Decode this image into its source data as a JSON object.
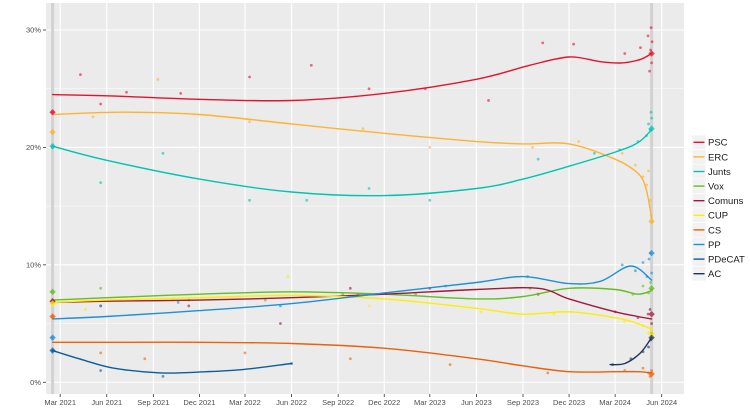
{
  "chart_data": {
    "type": "line",
    "title": "",
    "xlabel": "",
    "ylabel": "",
    "ylim": [
      -1,
      32.3
    ],
    "y_ticks": [
      {
        "value": 0,
        "label": "0%"
      },
      {
        "value": 10,
        "label": "10%"
      },
      {
        "value": 20,
        "label": "20%"
      },
      {
        "value": 30,
        "label": "30%"
      }
    ],
    "x_range": [
      "2021-02-01",
      "2024-07-15"
    ],
    "x_ticks": [
      {
        "date": "2021-03-01",
        "label": "Mar 2021"
      },
      {
        "date": "2021-06-01",
        "label": "Jun 2021"
      },
      {
        "date": "2021-09-01",
        "label": "Sep 2021"
      },
      {
        "date": "2021-12-01",
        "label": "Dec 2021"
      },
      {
        "date": "2022-03-01",
        "label": "Mar 2022"
      },
      {
        "date": "2022-06-01",
        "label": "Jun 2022"
      },
      {
        "date": "2022-09-01",
        "label": "Sep 2022"
      },
      {
        "date": "2022-12-01",
        "label": "Dec 2022"
      },
      {
        "date": "2023-03-01",
        "label": "Mar 2023"
      },
      {
        "date": "2023-06-01",
        "label": "Jun 2023"
      },
      {
        "date": "2023-09-01",
        "label": "Sep 2023"
      },
      {
        "date": "2023-12-01",
        "label": "Dec 2023"
      },
      {
        "date": "2024-03-01",
        "label": "Mar 2024"
      },
      {
        "date": "2024-06-01",
        "label": "Jun 2024"
      }
    ],
    "event_lines": [
      "2021-02-14",
      "2024-05-12"
    ],
    "grid": true,
    "legend_position": "right",
    "series": [
      {
        "name": "PSC",
        "color": "#e8112d",
        "trend": [
          [
            "2021-02-14",
            24.5
          ],
          [
            "2021-06-01",
            24.4
          ],
          [
            "2021-12-01",
            24.1
          ],
          [
            "2022-06-01",
            24.0
          ],
          [
            "2022-12-01",
            24.6
          ],
          [
            "2023-06-01",
            25.8
          ],
          [
            "2023-09-15",
            27.0
          ],
          [
            "2023-12-01",
            27.7
          ],
          [
            "2024-02-01",
            27.3
          ],
          [
            "2024-03-15",
            27.2
          ],
          [
            "2024-04-20",
            27.5
          ],
          [
            "2024-05-12",
            28.0
          ]
        ],
        "polls": [
          [
            "2021-02-14",
            23.0
          ],
          [
            "2021-04-10",
            26.2
          ],
          [
            "2021-05-20",
            23.7
          ],
          [
            "2021-07-10",
            24.7
          ],
          [
            "2021-10-25",
            24.6
          ],
          [
            "2022-03-10",
            26.0
          ],
          [
            "2022-07-10",
            27.0
          ],
          [
            "2022-11-01",
            25.0
          ],
          [
            "2023-02-20",
            25.0
          ],
          [
            "2023-06-25",
            24.0
          ],
          [
            "2023-10-10",
            28.9
          ],
          [
            "2023-12-10",
            28.8
          ],
          [
            "2024-03-20",
            28.0
          ],
          [
            "2024-04-20",
            28.5
          ],
          [
            "2024-05-05",
            29.5
          ],
          [
            "2024-05-08",
            26.5
          ],
          [
            "2024-05-10",
            28.3
          ],
          [
            "2024-05-11",
            30.2
          ],
          [
            "2024-05-12",
            27.2
          ],
          [
            "2024-05-13",
            29.0
          ]
        ]
      },
      {
        "name": "ERC",
        "color": "#ffb232",
        "trend": [
          [
            "2021-02-14",
            22.8
          ],
          [
            "2021-07-01",
            23.0
          ],
          [
            "2021-12-01",
            22.8
          ],
          [
            "2022-06-01",
            22.0
          ],
          [
            "2022-12-01",
            21.2
          ],
          [
            "2023-06-01",
            20.5
          ],
          [
            "2023-09-01",
            20.3
          ],
          [
            "2023-12-01",
            20.3
          ],
          [
            "2024-03-01",
            19.0
          ],
          [
            "2024-04-15",
            17.8
          ],
          [
            "2024-05-01",
            16.5
          ],
          [
            "2024-05-12",
            14.0
          ]
        ],
        "polls": [
          [
            "2021-02-14",
            21.4
          ],
          [
            "2021-05-05",
            22.6
          ],
          [
            "2021-09-10",
            25.8
          ],
          [
            "2022-03-10",
            22.2
          ],
          [
            "2022-10-20",
            21.6
          ],
          [
            "2023-03-01",
            20.0
          ],
          [
            "2023-09-20",
            20.0
          ],
          [
            "2023-12-20",
            20.5
          ],
          [
            "2024-03-15",
            19.5
          ],
          [
            "2024-04-10",
            18.5
          ],
          [
            "2024-04-25",
            17.5
          ],
          [
            "2024-05-02",
            16.8
          ],
          [
            "2024-05-06",
            18.0
          ],
          [
            "2024-05-09",
            15.5
          ],
          [
            "2024-05-11",
            14.2
          ],
          [
            "2024-05-12",
            13.7
          ]
        ]
      },
      {
        "name": "Junts",
        "color": "#00c3b2",
        "trend": [
          [
            "2021-02-14",
            20.1
          ],
          [
            "2021-06-01",
            18.9
          ],
          [
            "2021-12-01",
            17.3
          ],
          [
            "2022-06-01",
            16.2
          ],
          [
            "2022-12-01",
            15.9
          ],
          [
            "2023-06-01",
            16.5
          ],
          [
            "2023-09-01",
            17.3
          ],
          [
            "2023-12-01",
            18.4
          ],
          [
            "2024-03-01",
            19.6
          ],
          [
            "2024-04-15",
            20.4
          ],
          [
            "2024-05-12",
            21.5
          ]
        ],
        "polls": [
          [
            "2021-02-14",
            20.0
          ],
          [
            "2021-05-20",
            17.0
          ],
          [
            "2021-09-20",
            19.5
          ],
          [
            "2022-03-10",
            15.5
          ],
          [
            "2022-07-01",
            15.5
          ],
          [
            "2022-11-01",
            16.5
          ],
          [
            "2023-03-01",
            15.5
          ],
          [
            "2023-10-01",
            19.0
          ],
          [
            "2024-01-20",
            19.5
          ],
          [
            "2024-03-10",
            19.8
          ],
          [
            "2024-04-15",
            20.5
          ],
          [
            "2024-05-02",
            21.0
          ],
          [
            "2024-05-06",
            22.0
          ],
          [
            "2024-05-09",
            21.5
          ],
          [
            "2024-05-11",
            23.0
          ],
          [
            "2024-05-12",
            22.5
          ]
        ]
      },
      {
        "name": "Vox",
        "color": "#63be21",
        "trend": [
          [
            "2021-02-14",
            7.0
          ],
          [
            "2021-06-01",
            7.2
          ],
          [
            "2021-12-01",
            7.5
          ],
          [
            "2022-06-01",
            7.7
          ],
          [
            "2022-12-01",
            7.5
          ],
          [
            "2023-06-01",
            7.1
          ],
          [
            "2023-09-01",
            7.3
          ],
          [
            "2023-12-01",
            8.0
          ],
          [
            "2024-03-01",
            7.9
          ],
          [
            "2024-04-15",
            7.5
          ],
          [
            "2024-05-12",
            7.8
          ]
        ],
        "polls": [
          [
            "2021-02-14",
            7.7
          ],
          [
            "2021-05-20",
            8.0
          ],
          [
            "2021-11-10",
            7.0
          ],
          [
            "2022-04-10",
            7.0
          ],
          [
            "2022-09-10",
            7.5
          ],
          [
            "2023-02-01",
            7.5
          ],
          [
            "2023-09-15",
            8.0
          ],
          [
            "2024-04-05",
            7.5
          ],
          [
            "2024-04-25",
            8.2
          ],
          [
            "2024-05-06",
            7.6
          ],
          [
            "2024-05-10",
            8.5
          ],
          [
            "2024-05-12",
            7.9
          ]
        ]
      },
      {
        "name": "Comuns",
        "color": "#a1183a",
        "trend": [
          [
            "2021-02-14",
            6.8
          ],
          [
            "2021-06-01",
            6.9
          ],
          [
            "2021-12-01",
            7.0
          ],
          [
            "2022-06-01",
            7.2
          ],
          [
            "2022-12-01",
            7.5
          ],
          [
            "2023-06-01",
            7.9
          ],
          [
            "2023-10-01",
            8.0
          ],
          [
            "2023-12-01",
            7.1
          ],
          [
            "2024-03-01",
            6.0
          ],
          [
            "2024-04-15",
            5.6
          ],
          [
            "2024-05-12",
            5.4
          ]
        ],
        "polls": [
          [
            "2021-02-14",
            6.9
          ],
          [
            "2021-05-20",
            6.5
          ],
          [
            "2021-11-10",
            6.5
          ],
          [
            "2022-05-10",
            5.0
          ],
          [
            "2022-09-25",
            8.0
          ],
          [
            "2023-03-01",
            8.0
          ],
          [
            "2023-10-01",
            7.5
          ],
          [
            "2024-03-01",
            6.0
          ],
          [
            "2024-04-15",
            5.5
          ],
          [
            "2024-05-05",
            5.8
          ],
          [
            "2024-05-09",
            6.2
          ],
          [
            "2024-05-12",
            5.0
          ]
        ]
      },
      {
        "name": "CUP",
        "color": "#ffed00",
        "trend": [
          [
            "2021-02-14",
            6.8
          ],
          [
            "2021-06-01",
            7.0
          ],
          [
            "2021-12-01",
            7.2
          ],
          [
            "2022-06-01",
            7.4
          ],
          [
            "2022-12-01",
            7.1
          ],
          [
            "2023-06-01",
            6.3
          ],
          [
            "2023-09-01",
            5.8
          ],
          [
            "2023-12-01",
            6.0
          ],
          [
            "2024-03-01",
            5.5
          ],
          [
            "2024-04-15",
            5.0
          ],
          [
            "2024-05-12",
            4.5
          ]
        ],
        "polls": [
          [
            "2021-02-14",
            6.7
          ],
          [
            "2021-04-20",
            6.2
          ],
          [
            "2021-10-10",
            7.0
          ],
          [
            "2022-05-25",
            9.0
          ],
          [
            "2022-11-01",
            6.5
          ],
          [
            "2023-06-10",
            6.0
          ],
          [
            "2023-11-01",
            5.8
          ],
          [
            "2024-03-20",
            5.2
          ],
          [
            "2024-04-25",
            4.8
          ],
          [
            "2024-05-06",
            4.2
          ],
          [
            "2024-05-11",
            4.6
          ]
        ]
      },
      {
        "name": "CS",
        "color": "#eb6109",
        "trend": [
          [
            "2021-02-14",
            3.4
          ],
          [
            "2021-06-01",
            3.4
          ],
          [
            "2021-12-01",
            3.4
          ],
          [
            "2022-06-01",
            3.3
          ],
          [
            "2022-12-01",
            2.9
          ],
          [
            "2023-06-01",
            2.0
          ],
          [
            "2023-09-01",
            1.4
          ],
          [
            "2023-12-01",
            0.9
          ],
          [
            "2024-03-01",
            0.9
          ],
          [
            "2024-04-15",
            0.9
          ],
          [
            "2024-05-12",
            0.8
          ]
        ],
        "polls": [
          [
            "2021-02-14",
            5.6
          ],
          [
            "2021-05-20",
            2.5
          ],
          [
            "2021-08-15",
            2.0
          ],
          [
            "2022-03-01",
            2.5
          ],
          [
            "2022-09-25",
            2.0
          ],
          [
            "2023-04-10",
            1.5
          ],
          [
            "2023-10-20",
            0.8
          ],
          [
            "2024-03-20",
            1.0
          ],
          [
            "2024-04-25",
            1.2
          ],
          [
            "2024-05-06",
            0.8
          ],
          [
            "2024-05-09",
            0.5
          ],
          [
            "2024-05-12",
            1.0
          ]
        ]
      },
      {
        "name": "PP",
        "color": "#1e90d6",
        "trend": [
          [
            "2021-02-14",
            5.4
          ],
          [
            "2021-06-01",
            5.6
          ],
          [
            "2021-12-01",
            6.1
          ],
          [
            "2022-06-01",
            6.7
          ],
          [
            "2022-12-01",
            7.6
          ],
          [
            "2023-06-01",
            8.5
          ],
          [
            "2023-09-01",
            9.0
          ],
          [
            "2023-12-01",
            8.4
          ],
          [
            "2024-02-01",
            8.6
          ],
          [
            "2024-04-01",
            9.9
          ],
          [
            "2024-05-12",
            8.7
          ]
        ],
        "polls": [
          [
            "2021-02-14",
            3.8
          ],
          [
            "2021-05-20",
            6.5
          ],
          [
            "2021-10-20",
            6.8
          ],
          [
            "2022-05-10",
            6.5
          ],
          [
            "2022-10-10",
            7.5
          ],
          [
            "2023-04-01",
            8.2
          ],
          [
            "2023-09-10",
            9.0
          ],
          [
            "2024-03-15",
            10.0
          ],
          [
            "2024-04-10",
            9.5
          ],
          [
            "2024-04-25",
            10.2
          ],
          [
            "2024-05-03",
            9.0
          ],
          [
            "2024-05-07",
            10.5
          ],
          [
            "2024-05-10",
            11.0
          ],
          [
            "2024-05-12",
            9.3
          ]
        ]
      },
      {
        "name": "PDeCAT",
        "color": "#0d5c9e",
        "trend": [
          [
            "2021-02-14",
            2.7
          ],
          [
            "2021-04-15",
            1.9
          ],
          [
            "2021-06-15",
            1.2
          ],
          [
            "2021-09-15",
            0.8
          ],
          [
            "2021-12-15",
            0.9
          ],
          [
            "2022-03-01",
            1.1
          ],
          [
            "2022-06-01",
            1.6
          ]
        ],
        "polls": [
          [
            "2021-02-14",
            2.7
          ],
          [
            "2021-05-20",
            1.0
          ],
          [
            "2021-09-20",
            0.5
          ],
          [
            "2022-06-01",
            1.6
          ]
        ]
      },
      {
        "name": "AC",
        "color": "#1c3558",
        "trend": [
          [
            "2024-02-20",
            1.5
          ],
          [
            "2024-03-20",
            1.6
          ],
          [
            "2024-04-20",
            2.5
          ],
          [
            "2024-05-12",
            3.8
          ]
        ],
        "polls": [
          [
            "2024-02-25",
            1.5
          ],
          [
            "2024-04-01",
            2.0
          ],
          [
            "2024-04-25",
            2.6
          ],
          [
            "2024-05-06",
            3.0
          ],
          [
            "2024-05-10",
            3.6
          ],
          [
            "2024-05-12",
            4.2
          ]
        ]
      }
    ],
    "elections": [
      {
        "date": "2021-02-14",
        "values": {
          "PSC": 23.0,
          "ERC": 21.3,
          "Junts": 20.1,
          "Vox": 7.7,
          "Comuns": 6.9,
          "CUP": 6.7,
          "CS": 5.6,
          "PP": 3.8,
          "PDeCAT": 2.7
        }
      },
      {
        "date": "2024-05-12",
        "values": {
          "PSC": 28.0,
          "ERC": 13.7,
          "Junts": 21.6,
          "Vox": 8.0,
          "Comuns": 5.8,
          "CUP": 4.1,
          "CS": 0.7,
          "PP": 11.0,
          "AC": 3.8
        }
      }
    ]
  }
}
